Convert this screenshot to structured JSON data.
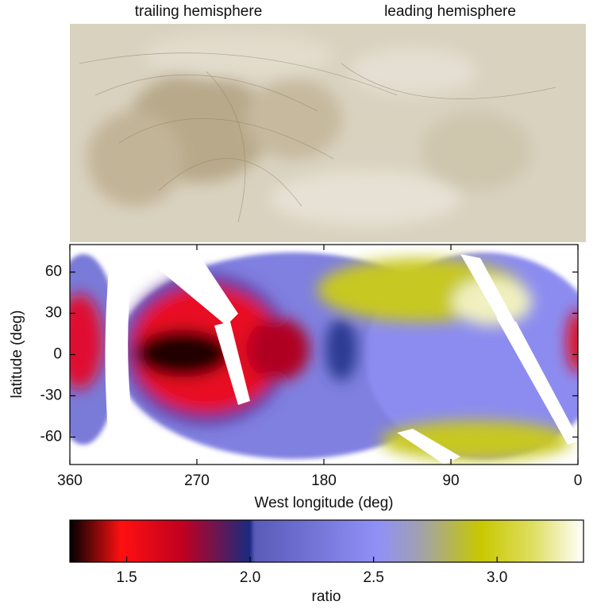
{
  "chart_data": {
    "type": "heatmap",
    "annotations": [
      "trailing hemisphere",
      "leading hemisphere"
    ],
    "xlabel": "West longitude (deg)",
    "ylabel": "latitude (deg)",
    "xlim": [
      360,
      0
    ],
    "xticks": [
      360,
      270,
      180,
      90,
      0
    ],
    "ylim": [
      -80,
      80
    ],
    "yticks": [
      60,
      30,
      0,
      -30,
      -60
    ],
    "colorbar": {
      "label": "ratio",
      "lim": [
        1.27,
        3.35
      ],
      "ticks": [
        1.5,
        {
          "value": 2,
          "label": "2.0"
        },
        2.5,
        {
          "value": 3,
          "label": "3.0"
        }
      ]
    }
  }
}
